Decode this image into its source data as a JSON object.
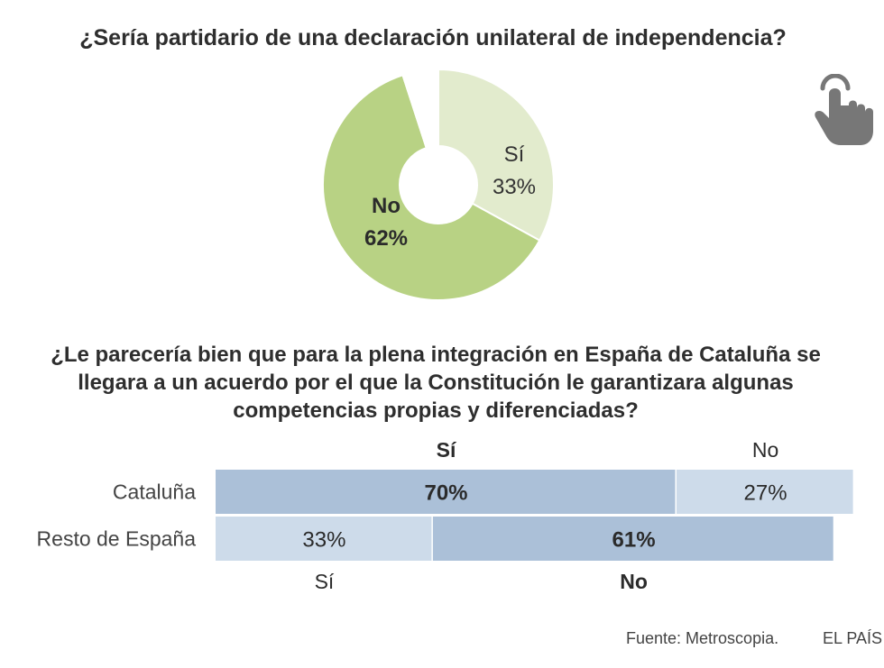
{
  "chart_data": [
    {
      "type": "pie",
      "title": "¿Sería partidario de una declaración unilateral de independencia?",
      "slices": [
        {
          "label": "Sí",
          "value": 33,
          "display": "33%",
          "color": "#e2ebcd"
        },
        {
          "label": "No",
          "value": 62,
          "display": "62%",
          "color": "#b8d284"
        },
        {
          "label": "",
          "value": 5,
          "display": "",
          "color": "#ffffff"
        }
      ]
    },
    {
      "type": "bar",
      "orientation": "horizontal-stacked",
      "title_lines": [
        "¿Le parecería bien que para la plena integración en España de Cataluña se",
        "llegara a un acuerdo por el que la Constitución le garantizara algunas",
        "competencias propias y diferenciadas?"
      ],
      "categories": [
        "Cataluña",
        "Resto de España"
      ],
      "rows": [
        {
          "label": "Cataluña",
          "segments": [
            {
              "name": "Sí",
              "value": 70,
              "display": "70%",
              "bold": true,
              "color": "#abc0d8"
            },
            {
              "name": "No",
              "value": 27,
              "display": "27%",
              "bold": false,
              "color": "#cddbea"
            }
          ]
        },
        {
          "label": "Resto de España",
          "segments": [
            {
              "name": "Sí",
              "value": 33,
              "display": "33%",
              "bold": false,
              "color": "#cddbea"
            },
            {
              "name": "No",
              "value": 61,
              "display": "61%",
              "bold": true,
              "color": "#abc0d8"
            }
          ]
        }
      ],
      "top_labels": [
        {
          "text": "Sí",
          "bold": true
        },
        {
          "text": "No",
          "bold": false
        }
      ],
      "bottom_labels": [
        {
          "text": "Sí",
          "bold": false
        },
        {
          "text": "No",
          "bold": true
        }
      ],
      "xlim": [
        0,
        100
      ]
    }
  ],
  "footer": {
    "source": "Fuente: Metroscopia.",
    "brand": "EL PAÍS"
  },
  "icons": {
    "interaction": "pointing-hand-icon"
  },
  "colors": {
    "icon": "#777777",
    "text": "#2b2b2b"
  }
}
